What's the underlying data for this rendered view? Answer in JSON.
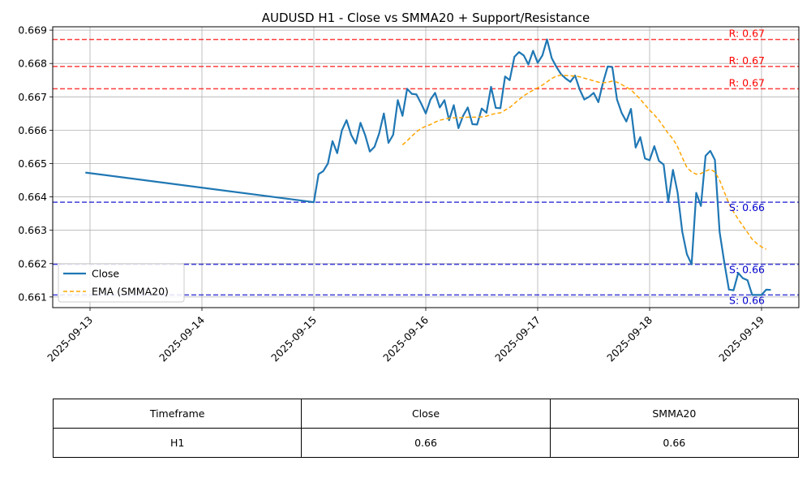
{
  "chart_data": {
    "type": "line",
    "title": "AUDUSD H1 - Close vs SMMA20 + Support/Resistance",
    "xlabel": "",
    "ylabel": "",
    "x_ticks": [
      "2025-09-13",
      "2025-09-14",
      "2025-09-15",
      "2025-09-16",
      "2025-09-17",
      "2025-09-18",
      "2025-09-19"
    ],
    "y_ticks": [
      "0.661",
      "0.662",
      "0.663",
      "0.664",
      "0.665",
      "0.666",
      "0.667",
      "0.668",
      "0.669"
    ],
    "xlim": [
      "2025-09-12 16:00",
      "2025-09-19 08:00"
    ],
    "ylim": [
      0.66068,
      0.6691
    ],
    "grid": true,
    "legend_position": "lower-left",
    "colors": {
      "close": "#1f77b4",
      "ema": "#ffa500",
      "resistance": "#ff0000",
      "support": "#0000cd"
    },
    "series": [
      {
        "name": "Close",
        "style": "solid",
        "points": [
          [
            "2025-09-12 23:00",
            0.66473
          ],
          [
            "2025-09-15 00:00",
            0.66384
          ],
          [
            "2025-09-15 01:00",
            0.66468
          ],
          [
            "2025-09-15 02:00",
            0.66477
          ],
          [
            "2025-09-15 03:00",
            0.665
          ],
          [
            "2025-09-15 04:00",
            0.66567
          ],
          [
            "2025-09-15 05:00",
            0.66531
          ],
          [
            "2025-09-15 06:00",
            0.66599
          ],
          [
            "2025-09-15 07:00",
            0.6663
          ],
          [
            "2025-09-15 08:00",
            0.66586
          ],
          [
            "2025-09-15 09:00",
            0.6656
          ],
          [
            "2025-09-15 10:00",
            0.66622
          ],
          [
            "2025-09-15 11:00",
            0.66585
          ],
          [
            "2025-09-15 12:00",
            0.66536
          ],
          [
            "2025-09-15 13:00",
            0.6655
          ],
          [
            "2025-09-15 14:00",
            0.6659
          ],
          [
            "2025-09-15 15:00",
            0.6665
          ],
          [
            "2025-09-15 16:00",
            0.66562
          ],
          [
            "2025-09-15 17:00",
            0.66586
          ],
          [
            "2025-09-15 18:00",
            0.6669
          ],
          [
            "2025-09-15 19:00",
            0.66643
          ],
          [
            "2025-09-15 20:00",
            0.66724
          ],
          [
            "2025-09-15 21:00",
            0.66709
          ],
          [
            "2025-09-15 22:00",
            0.66707
          ],
          [
            "2025-09-15 23:00",
            0.6668
          ],
          [
            "2025-09-16 00:00",
            0.6665
          ],
          [
            "2025-09-16 01:00",
            0.66692
          ],
          [
            "2025-09-16 02:00",
            0.66712
          ],
          [
            "2025-09-16 03:00",
            0.66668
          ],
          [
            "2025-09-16 04:00",
            0.6669
          ],
          [
            "2025-09-16 05:00",
            0.6663
          ],
          [
            "2025-09-16 06:00",
            0.66675
          ],
          [
            "2025-09-16 07:00",
            0.66606
          ],
          [
            "2025-09-16 08:00",
            0.66643
          ],
          [
            "2025-09-16 09:00",
            0.66668
          ],
          [
            "2025-09-16 10:00",
            0.66618
          ],
          [
            "2025-09-16 11:00",
            0.66617
          ],
          [
            "2025-09-16 12:00",
            0.66665
          ],
          [
            "2025-09-16 13:00",
            0.66652
          ],
          [
            "2025-09-16 14:00",
            0.6673
          ],
          [
            "2025-09-16 15:00",
            0.66667
          ],
          [
            "2025-09-16 16:00",
            0.66666
          ],
          [
            "2025-09-16 17:00",
            0.66761
          ],
          [
            "2025-09-16 18:00",
            0.6675
          ],
          [
            "2025-09-16 19:00",
            0.6682
          ],
          [
            "2025-09-16 20:00",
            0.66834
          ],
          [
            "2025-09-16 21:00",
            0.66824
          ],
          [
            "2025-09-16 22:00",
            0.66797
          ],
          [
            "2025-09-16 23:00",
            0.66838
          ],
          [
            "2025-09-17 00:00",
            0.66802
          ],
          [
            "2025-09-17 01:00",
            0.66824
          ],
          [
            "2025-09-17 02:00",
            0.66872
          ],
          [
            "2025-09-17 03:00",
            0.66816
          ],
          [
            "2025-09-17 04:00",
            0.6679
          ],
          [
            "2025-09-17 05:00",
            0.66768
          ],
          [
            "2025-09-17 06:00",
            0.66755
          ],
          [
            "2025-09-17 07:00",
            0.66745
          ],
          [
            "2025-09-17 08:00",
            0.66764
          ],
          [
            "2025-09-17 09:00",
            0.66722
          ],
          [
            "2025-09-17 10:00",
            0.66692
          ],
          [
            "2025-09-17 11:00",
            0.667
          ],
          [
            "2025-09-17 12:00",
            0.66712
          ],
          [
            "2025-09-17 13:00",
            0.66684
          ],
          [
            "2025-09-17 14:00",
            0.66742
          ],
          [
            "2025-09-17 15:00",
            0.66791
          ],
          [
            "2025-09-17 16:00",
            0.66789
          ],
          [
            "2025-09-17 17:00",
            0.66692
          ],
          [
            "2025-09-17 18:00",
            0.66652
          ],
          [
            "2025-09-17 19:00",
            0.66626
          ],
          [
            "2025-09-17 20:00",
            0.66664
          ],
          [
            "2025-09-17 21:00",
            0.66548
          ],
          [
            "2025-09-17 22:00",
            0.66579
          ],
          [
            "2025-09-17 23:00",
            0.66515
          ],
          [
            "2025-09-18 00:00",
            0.6651
          ],
          [
            "2025-09-18 01:00",
            0.66552
          ],
          [
            "2025-09-18 02:00",
            0.66508
          ],
          [
            "2025-09-18 03:00",
            0.66497
          ],
          [
            "2025-09-18 04:00",
            0.66385
          ],
          [
            "2025-09-18 05:00",
            0.66481
          ],
          [
            "2025-09-18 06:00",
            0.66413
          ],
          [
            "2025-09-18 07:00",
            0.66295
          ],
          [
            "2025-09-18 08:00",
            0.66228
          ],
          [
            "2025-09-18 09:00",
            0.66198
          ],
          [
            "2025-09-18 10:00",
            0.66412
          ],
          [
            "2025-09-18 11:00",
            0.66373
          ],
          [
            "2025-09-18 12:00",
            0.66523
          ],
          [
            "2025-09-18 13:00",
            0.66538
          ],
          [
            "2025-09-18 14:00",
            0.66511
          ],
          [
            "2025-09-18 15:00",
            0.66295
          ],
          [
            "2025-09-18 16:00",
            0.66205
          ],
          [
            "2025-09-18 17:00",
            0.66122
          ],
          [
            "2025-09-18 18:00",
            0.6612
          ],
          [
            "2025-09-18 19:00",
            0.66172
          ],
          [
            "2025-09-18 20:00",
            0.66156
          ],
          [
            "2025-09-18 21:00",
            0.6615
          ],
          [
            "2025-09-18 22:00",
            0.66106
          ],
          [
            "2025-09-18 23:00",
            0.66106
          ],
          [
            "2025-09-19 00:00",
            0.66106
          ],
          [
            "2025-09-19 01:00",
            0.66122
          ],
          [
            "2025-09-19 02:00",
            0.66121
          ]
        ]
      },
      {
        "name": "EMA (SMMA20)",
        "style": "dashed",
        "points": [
          [
            "2025-09-15 19:00",
            0.66556
          ],
          [
            "2025-09-15 20:00",
            0.66568
          ],
          [
            "2025-09-15 21:00",
            0.66582
          ],
          [
            "2025-09-15 22:00",
            0.66595
          ],
          [
            "2025-09-15 23:00",
            0.66605
          ],
          [
            "2025-09-16 00:00",
            0.66612
          ],
          [
            "2025-09-16 01:00",
            0.66617
          ],
          [
            "2025-09-16 02:00",
            0.66624
          ],
          [
            "2025-09-16 03:00",
            0.6663
          ],
          [
            "2025-09-16 04:00",
            0.66633
          ],
          [
            "2025-09-16 05:00",
            0.66636
          ],
          [
            "2025-09-16 06:00",
            0.66637
          ],
          [
            "2025-09-16 07:00",
            0.66637
          ],
          [
            "2025-09-16 08:00",
            0.66638
          ],
          [
            "2025-09-16 09:00",
            0.66639
          ],
          [
            "2025-09-16 10:00",
            0.66639
          ],
          [
            "2025-09-16 11:00",
            0.66639
          ],
          [
            "2025-09-16 12:00",
            0.6664
          ],
          [
            "2025-09-16 13:00",
            0.66642
          ],
          [
            "2025-09-16 14:00",
            0.66647
          ],
          [
            "2025-09-16 15:00",
            0.6665
          ],
          [
            "2025-09-16 16:00",
            0.66652
          ],
          [
            "2025-09-16 17:00",
            0.6666
          ],
          [
            "2025-09-16 18:00",
            0.66668
          ],
          [
            "2025-09-16 19:00",
            0.6668
          ],
          [
            "2025-09-16 20:00",
            0.66692
          ],
          [
            "2025-09-16 21:00",
            0.66703
          ],
          [
            "2025-09-16 22:00",
            0.66712
          ],
          [
            "2025-09-16 23:00",
            0.6672
          ],
          [
            "2025-09-17 00:00",
            0.66727
          ],
          [
            "2025-09-17 01:00",
            0.66735
          ],
          [
            "2025-09-17 02:00",
            0.66745
          ],
          [
            "2025-09-17 03:00",
            0.66755
          ],
          [
            "2025-09-17 04:00",
            0.66762
          ],
          [
            "2025-09-17 05:00",
            0.66765
          ],
          [
            "2025-09-17 06:00",
            0.66764
          ],
          [
            "2025-09-17 07:00",
            0.66763
          ],
          [
            "2025-09-17 08:00",
            0.66762
          ],
          [
            "2025-09-17 09:00",
            0.6676
          ],
          [
            "2025-09-17 10:00",
            0.66756
          ],
          [
            "2025-09-17 11:00",
            0.66752
          ],
          [
            "2025-09-17 12:00",
            0.66748
          ],
          [
            "2025-09-17 13:00",
            0.66744
          ],
          [
            "2025-09-17 14:00",
            0.66742
          ],
          [
            "2025-09-17 15:00",
            0.66744
          ],
          [
            "2025-09-17 16:00",
            0.66747
          ],
          [
            "2025-09-17 17:00",
            0.66744
          ],
          [
            "2025-09-17 18:00",
            0.66737
          ],
          [
            "2025-09-17 19:00",
            0.66729
          ],
          [
            "2025-09-17 20:00",
            0.66721
          ],
          [
            "2025-09-17 21:00",
            0.66707
          ],
          [
            "2025-09-17 22:00",
            0.66693
          ],
          [
            "2025-09-17 23:00",
            0.66676
          ],
          [
            "2025-09-18 00:00",
            0.6666
          ],
          [
            "2025-09-18 01:00",
            0.66646
          ],
          [
            "2025-09-18 02:00",
            0.6663
          ],
          [
            "2025-09-18 03:00",
            0.6661
          ],
          [
            "2025-09-18 04:00",
            0.6659
          ],
          [
            "2025-09-18 05:00",
            0.66574
          ],
          [
            "2025-09-18 06:00",
            0.6655
          ],
          [
            "2025-09-18 07:00",
            0.66518
          ],
          [
            "2025-09-18 08:00",
            0.66488
          ],
          [
            "2025-09-18 09:00",
            0.66475
          ],
          [
            "2025-09-18 10:00",
            0.66468
          ],
          [
            "2025-09-18 11:00",
            0.6647
          ],
          [
            "2025-09-18 12:00",
            0.66477
          ],
          [
            "2025-09-18 13:00",
            0.66483
          ],
          [
            "2025-09-18 14:00",
            0.66475
          ],
          [
            "2025-09-18 15:00",
            0.6645
          ],
          [
            "2025-09-18 16:00",
            0.66415
          ],
          [
            "2025-09-18 17:00",
            0.6638
          ],
          [
            "2025-09-18 18:00",
            0.66355
          ],
          [
            "2025-09-18 19:00",
            0.66333
          ],
          [
            "2025-09-18 20:00",
            0.66313
          ],
          [
            "2025-09-18 21:00",
            0.66293
          ],
          [
            "2025-09-18 22:00",
            0.66273
          ],
          [
            "2025-09-18 23:00",
            0.6626
          ],
          [
            "2025-09-19 00:00",
            0.6625
          ],
          [
            "2025-09-19 01:00",
            0.66243
          ]
        ]
      }
    ],
    "hlines": [
      {
        "kind": "resistance",
        "value": 0.66872,
        "label": "R: 0.67"
      },
      {
        "kind": "resistance",
        "value": 0.66791,
        "label": "R: 0.67"
      },
      {
        "kind": "resistance",
        "value": 0.66724,
        "label": "R: 0.67"
      },
      {
        "kind": "support",
        "value": 0.66384,
        "label": "S: 0.66"
      },
      {
        "kind": "support",
        "value": 0.66198,
        "label": "S: 0.66"
      },
      {
        "kind": "support",
        "value": 0.66106,
        "label": "S: 0.66"
      }
    ]
  },
  "table": {
    "headers": [
      "Timeframe",
      "Close",
      "SMMA20"
    ],
    "rows": [
      [
        "H1",
        "0.66",
        "0.66"
      ]
    ]
  }
}
